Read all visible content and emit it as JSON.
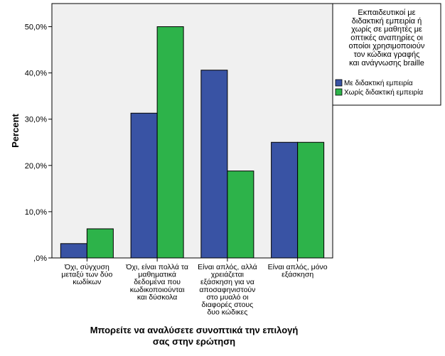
{
  "chart_data": {
    "type": "bar",
    "title": "",
    "categories": [
      [
        "Όχι, σύγχυση",
        "μεταξύ των δύο",
        "κωδίκων"
      ],
      [
        "Όχι, είναι πολλά τα",
        "μαθηματικά",
        "δεδομένα που",
        "κωδικοποιούνται",
        "και δύσκολα"
      ],
      [
        "Είναι απλός, αλλά",
        "χρειάζεται",
        "εξάσκηση για να",
        "αποσαφηνιστούν",
        "στο μυαλό οι",
        "διαφορές στους",
        "δυο κώδικες"
      ],
      [
        "Είναι απλός, μόνο",
        "εξάσκηση"
      ]
    ],
    "series": [
      {
        "name": "Με διδακτική εμπειρία",
        "color": "#3953a4",
        "values": [
          3.1,
          31.3,
          40.6,
          25.0
        ]
      },
      {
        "name": "Χωρίς διδακτική εμπειρία",
        "color": "#2db34a",
        "values": [
          6.3,
          50.0,
          18.8,
          25.0
        ]
      }
    ],
    "xlabel": [
      "Μπορείτε να αναλύσετε συνοπτικά την επιλογή",
      "σας στην ερώτηση"
    ],
    "ylabel": "Percent",
    "ylim": [
      0,
      55
    ],
    "yticks": [
      0,
      10,
      20,
      30,
      40,
      50
    ],
    "ytick_labels": [
      ",0%",
      "10,0%",
      "20,0%",
      "30,0%",
      "40,0%",
      "50,0%"
    ],
    "legend": {
      "placement": "right",
      "title_lines": [
        "Εκπαιδευτικοί με",
        "διδακτική εμπειρία ή",
        "χωρίς σε μαθητές με",
        "οπτικές αναπηρίες οι",
        "οποίοι χρησιμοποιούν",
        "τον κώδικα γραφής",
        "και ανάγνωσης braille"
      ]
    },
    "plot_background": "#f0f0f0"
  }
}
